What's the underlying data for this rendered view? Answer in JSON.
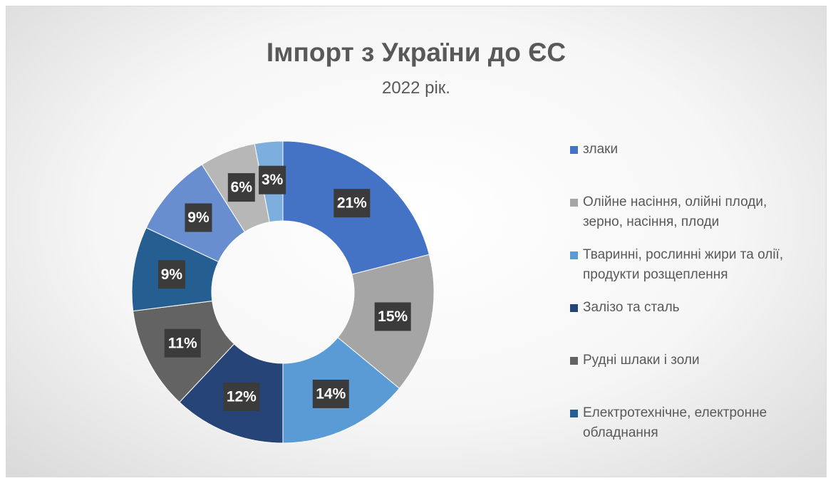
{
  "chart_data": {
    "type": "donut",
    "title": "Імпорт з України до ЄС",
    "subtitle": "2022 рік.",
    "categories": [
      "злаки",
      "Олійне насіння, олійні плоди, зерно, насіння, плоди",
      "Тваринні, рослинні жири та олії, продукти розщеплення",
      "Залізо та сталь",
      "Рудні шлаки і золи",
      "Електротехнічне, електронне обладнання",
      null,
      null,
      null
    ],
    "values": [
      21,
      15,
      14,
      12,
      11,
      9,
      9,
      6,
      3
    ],
    "value_labels": [
      "21%",
      "15%",
      "14%",
      "12%",
      "11%",
      "9%",
      "9%",
      "6%",
      "3%"
    ],
    "colors": [
      "#4472c4",
      "#a5a5a5",
      "#5b9bd5",
      "#264478",
      "#636363",
      "#255e91",
      "#698ed0",
      "#b7b7b7",
      "#7cafdd"
    ],
    "legend": "right"
  }
}
